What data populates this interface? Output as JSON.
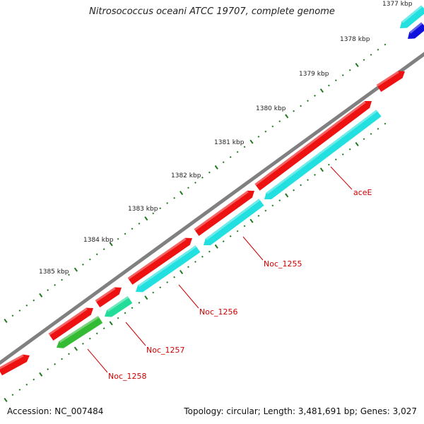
{
  "title": "Nitrosococcus oceani ATCC 19707, complete genome",
  "accession": "Accession: NC_007484",
  "summary": "Topology: circular; Length: 3,481,691 bp; Genes: 3,027",
  "colors": {
    "backbone": "#808080",
    "ticks": "#1f7a1f",
    "label_line": "#cc0000",
    "label_text": "#cc0000",
    "forward_gene": "#ee1111",
    "reverse_gene": "#22e0e0",
    "green_gene": "#33bb33",
    "teal_gene": "#22dd99",
    "blue_gene": "#1010dd"
  },
  "ruler": {
    "unit": "kbp",
    "ticks": [
      {
        "kbp": 1377,
        "label": "1377 kbp"
      },
      {
        "kbp": 1378,
        "label": "1378 kbp"
      },
      {
        "kbp": 1379,
        "label": "1379 kbp"
      },
      {
        "kbp": 1380,
        "label": "1380 kbp"
      },
      {
        "kbp": 1381,
        "label": "1381 kbp"
      },
      {
        "kbp": 1382,
        "label": "1382 kbp"
      },
      {
        "kbp": 1383,
        "label": "1383 kbp"
      },
      {
        "kbp": 1384,
        "label": "1384 kbp"
      },
      {
        "kbp": 1385,
        "label": "1385 kbp"
      }
    ]
  },
  "genes": [
    {
      "name": "aceE",
      "strand": "reverse",
      "color": "reverse_gene"
    },
    {
      "name": "Noc_1255",
      "strand": "reverse",
      "color": "reverse_gene"
    },
    {
      "name": "Noc_1256",
      "strand": "reverse",
      "color": "reverse_gene"
    },
    {
      "name": "Noc_1257",
      "strand": "reverse",
      "color": "teal_gene"
    },
    {
      "name": "Noc_1258",
      "strand": "reverse",
      "color": "green_gene"
    }
  ]
}
